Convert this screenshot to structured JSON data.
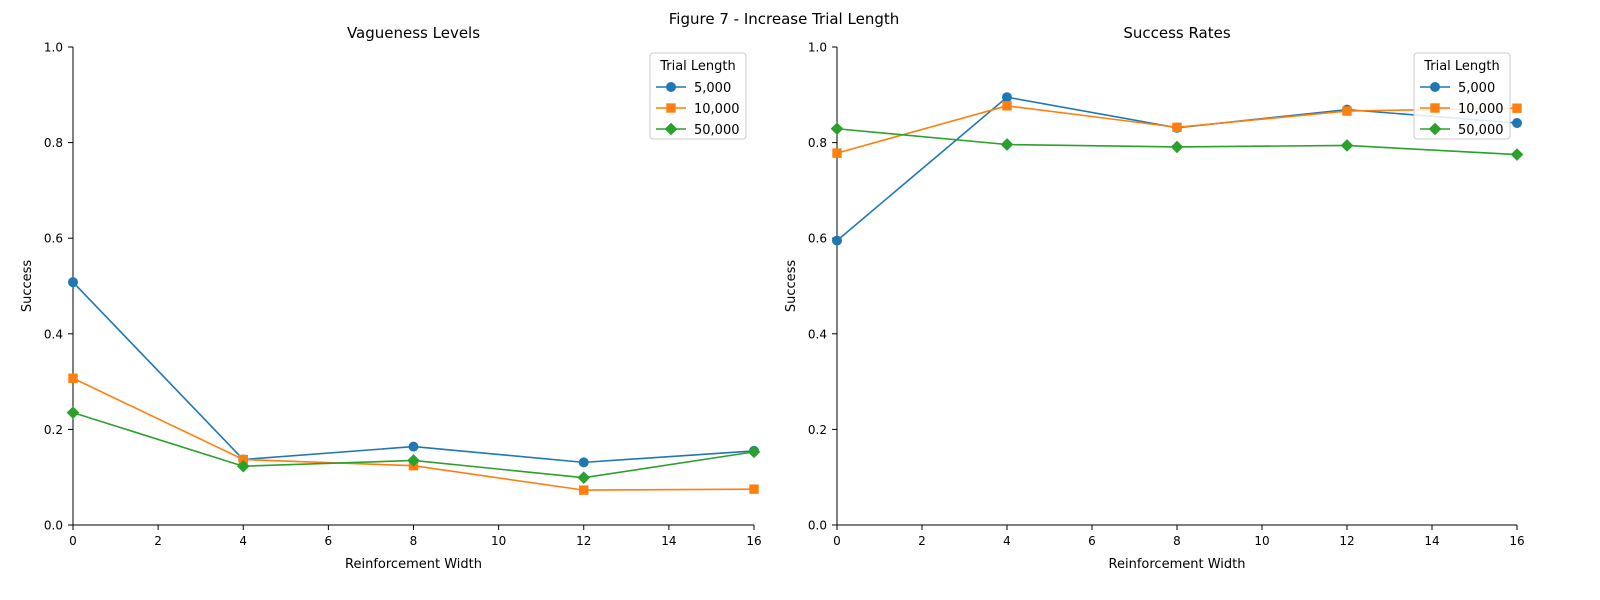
{
  "figure": {
    "suptitle": "Figure 7 - Increase Trial Length"
  },
  "chart_data": [
    {
      "type": "line",
      "title": "Vagueness Levels",
      "xlabel": "Reinforcement Width",
      "ylabel": "Success",
      "xlim": [
        0,
        16
      ],
      "ylim": [
        0,
        1
      ],
      "xticks": [
        0,
        2,
        4,
        6,
        8,
        10,
        12,
        14,
        16
      ],
      "yticks": [
        0.0,
        0.2,
        0.4,
        0.6,
        0.8,
        1.0
      ],
      "x": [
        0,
        4,
        8,
        12,
        16
      ],
      "legend": {
        "title": "Trial Length",
        "placement": "top-right"
      },
      "grid": false,
      "series": [
        {
          "name": "5,000",
          "color": "#1f77b4",
          "marker": "circle",
          "values": [
            0.508,
            0.137,
            0.164,
            0.131,
            0.155
          ]
        },
        {
          "name": "10,000",
          "color": "#ff7f0e",
          "marker": "square",
          "values": [
            0.307,
            0.137,
            0.124,
            0.073,
            0.075
          ]
        },
        {
          "name": "50,000",
          "color": "#2ca02c",
          "marker": "diamond",
          "values": [
            0.235,
            0.123,
            0.135,
            0.099,
            0.153
          ]
        }
      ]
    },
    {
      "type": "line",
      "title": "Success Rates",
      "xlabel": "Reinforcement Width",
      "ylabel": "Success",
      "xlim": [
        0,
        16
      ],
      "ylim": [
        0,
        1
      ],
      "xticks": [
        0,
        2,
        4,
        6,
        8,
        10,
        12,
        14,
        16
      ],
      "yticks": [
        0.0,
        0.2,
        0.4,
        0.6,
        0.8,
        1.0
      ],
      "x": [
        0,
        4,
        8,
        12,
        16
      ],
      "legend": {
        "title": "Trial Length",
        "placement": "top-right"
      },
      "grid": false,
      "series": [
        {
          "name": "5,000",
          "color": "#1f77b4",
          "marker": "circle",
          "values": [
            0.595,
            0.895,
            0.831,
            0.869,
            0.841
          ]
        },
        {
          "name": "10,000",
          "color": "#ff7f0e",
          "marker": "square",
          "values": [
            0.778,
            0.877,
            0.832,
            0.866,
            0.872
          ]
        },
        {
          "name": "50,000",
          "color": "#2ca02c",
          "marker": "diamond",
          "values": [
            0.829,
            0.796,
            0.791,
            0.794,
            0.775
          ]
        }
      ]
    }
  ]
}
